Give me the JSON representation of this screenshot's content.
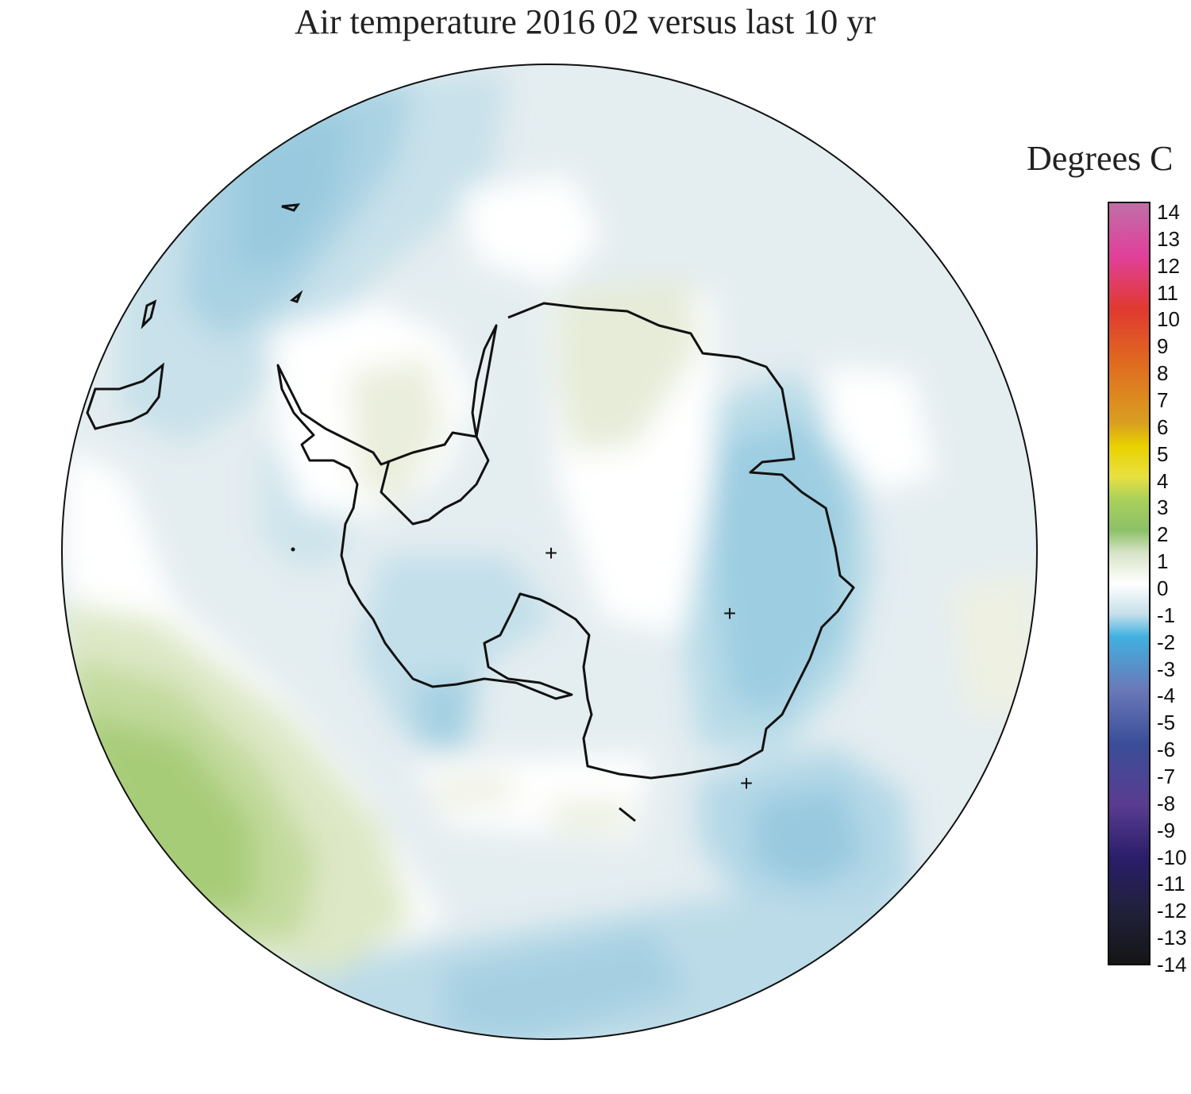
{
  "title": "Air temperature 2016 02 versus last 10 yr",
  "legend": {
    "title": "Degrees C",
    "ticks": [
      "14",
      "13",
      "12",
      "11",
      "10",
      "9",
      "8",
      "7",
      "6",
      "5",
      "4",
      "3",
      "2",
      "1",
      "0",
      "-1",
      "-2",
      "-3",
      "-4",
      "-5",
      "-6",
      "-7",
      "-8",
      "-9",
      "-10",
      "-11",
      "-12",
      "-13",
      "-14"
    ],
    "range": [
      -14,
      14
    ],
    "colors": {
      "14": "#c06fa8",
      "12": "#e0409a",
      "10": "#e03a30",
      "8": "#e06a20",
      "6": "#d9a020",
      "5": "#e8d200",
      "4": "#e8e040",
      "3": "#a9d05a",
      "2": "#8cc068",
      "1": "#d8e4c8",
      "0": "#ffffff",
      "-1": "#c6e0ea",
      "-2": "#40b0e0",
      "-4": "#6a78b8",
      "-6": "#3a4e98",
      "-8": "#5a3c90",
      "-10": "#2a1e6a",
      "-12": "#20203a",
      "-14": "#151515"
    }
  },
  "markers": [
    "+",
    "+",
    "+"
  ]
}
